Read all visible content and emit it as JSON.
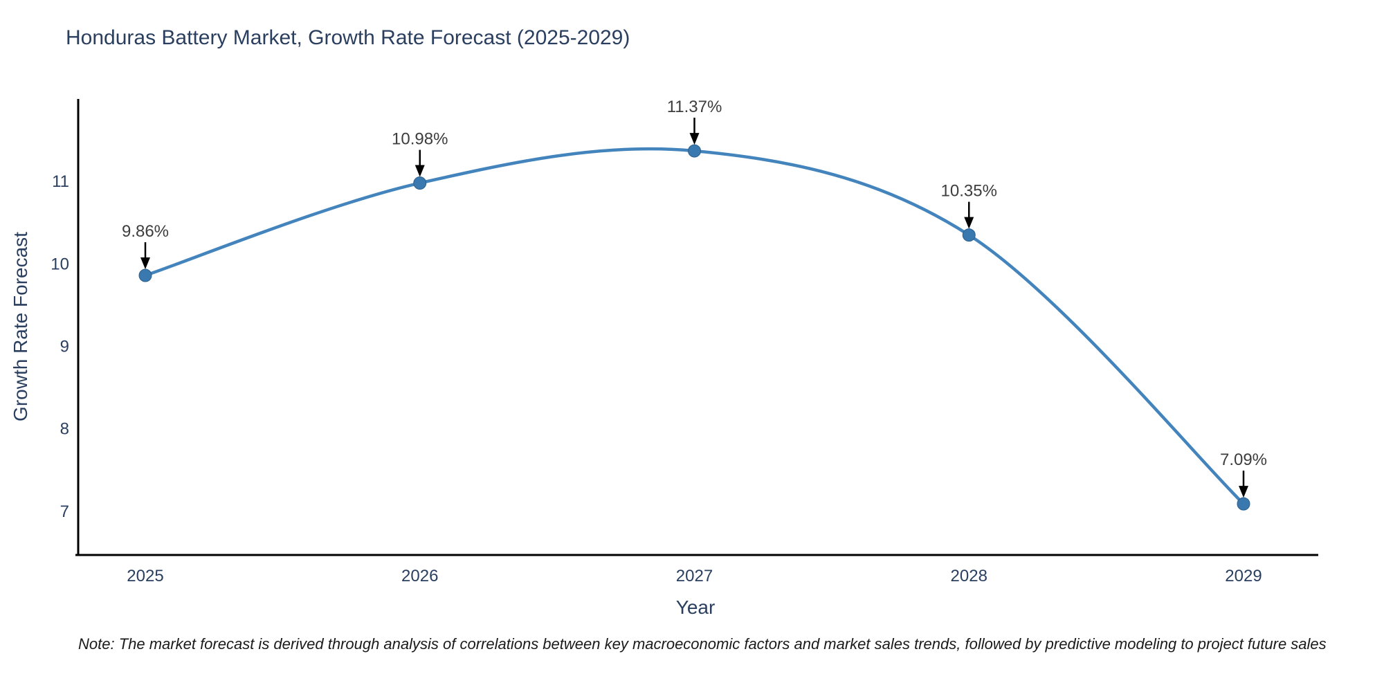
{
  "title": "Honduras Battery Market, Growth Rate Forecast (2025-2029)",
  "note": "Note: The market forecast is derived through analysis of correlations between key macroeconomic factors and market sales trends, followed by predictive modeling to project future sales",
  "colors": {
    "title_text": "#2a3f5f",
    "axis_text": "#2a3f5f",
    "annotation_text": "#3d3d3d",
    "axis_line": "#000000",
    "arrow": "#000000",
    "line": "#4384bd",
    "marker_fill": "#3a78b0",
    "marker_edge": "#2c5f8a",
    "background": "#ffffff"
  },
  "chart_data": {
    "type": "line",
    "title": "Honduras Battery Market, Growth Rate Forecast (2025-2029)",
    "xlabel": "Year",
    "ylabel": "Growth Rate Forecast",
    "x": [
      "2025",
      "2026",
      "2027",
      "2028",
      "2029"
    ],
    "series": [
      {
        "name": "Growth Rate Forecast",
        "values": [
          9.86,
          10.98,
          11.37,
          10.35,
          7.09
        ]
      }
    ],
    "point_labels": [
      "9.86%",
      "10.98%",
      "11.37%",
      "10.35%",
      "7.09%"
    ],
    "yticks": [
      7,
      8,
      9,
      10,
      11
    ],
    "ylim": [
      6.47,
      12.0
    ],
    "line_shape": "spline",
    "grid": false,
    "legend_position": "none"
  }
}
